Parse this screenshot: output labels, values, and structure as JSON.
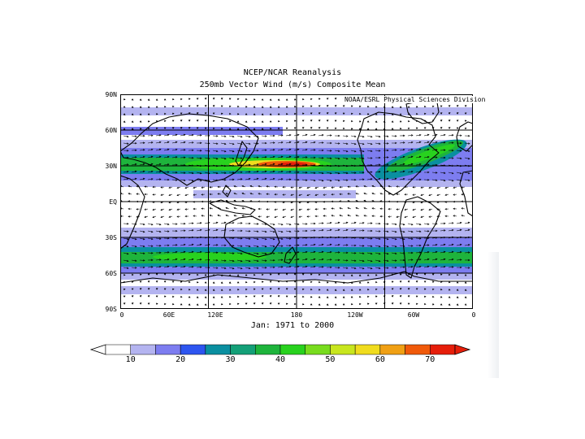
{
  "title": "NCEP/NCAR Reanalysis",
  "subtitle": "250mb Vector Wind (m/s) Composite Mean",
  "credit": "NOAA/ESRL Physical Sciences Division",
  "period": "Jan: 1971 to 2000",
  "latitude_labels": [
    "90N",
    "60N",
    "30N",
    "EQ",
    "30S",
    "60S",
    "90S"
  ],
  "longitude_labels": [
    "0",
    "60E",
    "120E",
    "180",
    "120W",
    "60W",
    "0"
  ],
  "colorbar": {
    "labels": [
      "10",
      "20",
      "30",
      "40",
      "50",
      "60",
      "70"
    ],
    "colors": [
      "#b4b4f0",
      "#7d7df0",
      "#2d55f0",
      "#0a8fa0",
      "#14a078",
      "#1eb43c",
      "#28d21e",
      "#78dc1e",
      "#c8e61e",
      "#f0dc1e",
      "#f0a014",
      "#f05a0a",
      "#e61e0a"
    ],
    "under_color": "#ffffff",
    "over_color": "#e61e0a"
  },
  "map_colors": {
    "light": "#b4b4f0",
    "medium": "#7d7df0",
    "teal": "#0a8fa0",
    "green": "#1eb43c",
    "bright_green": "#28d21e",
    "yellow": "#f0dc1e",
    "orange": "#f05a0a",
    "red": "#e61e0a"
  }
}
